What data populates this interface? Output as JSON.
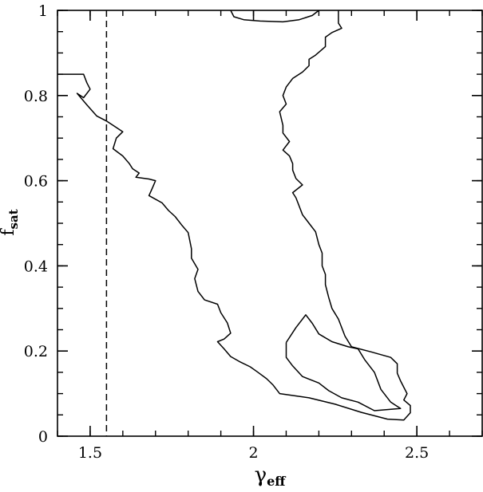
{
  "chart_data": {
    "type": "line",
    "title": "",
    "xlabel": {
      "main": "γ",
      "sub": "eff"
    },
    "ylabel": {
      "main": "f",
      "sub": "sat"
    },
    "xlim": [
      1.4,
      2.7
    ],
    "ylim": [
      0,
      1
    ],
    "x_ticks": [
      {
        "value": 1.5,
        "label": "1.5"
      },
      {
        "value": 2.0,
        "label": "2"
      },
      {
        "value": 2.5,
        "label": "2.5"
      }
    ],
    "y_ticks": [
      {
        "value": 0.0,
        "label": "0"
      },
      {
        "value": 0.2,
        "label": "0.2"
      },
      {
        "value": 0.4,
        "label": "0.4"
      },
      {
        "value": 0.6,
        "label": "0.6"
      },
      {
        "value": 0.8,
        "label": "0.8"
      },
      {
        "value": 1.0,
        "label": "1"
      }
    ],
    "x_minor_step": 0.1,
    "y_minor_step": 0.05,
    "grid": false,
    "reference_lines": [
      {
        "orientation": "vertical",
        "x": 1.55,
        "style": "dashed"
      }
    ],
    "series": [
      {
        "style": "solid",
        "points": [
          [
            1.4,
            0.85
          ],
          [
            1.48,
            0.85
          ],
          [
            1.49,
            0.83
          ],
          [
            1.5,
            0.815
          ],
          [
            1.48,
            0.795
          ],
          [
            1.46,
            0.805
          ],
          [
            1.49,
            0.778
          ],
          [
            1.52,
            0.752
          ],
          [
            1.55,
            0.74
          ],
          [
            1.58,
            0.725
          ],
          [
            1.6,
            0.715
          ],
          [
            1.58,
            0.7
          ],
          [
            1.57,
            0.675
          ],
          [
            1.6,
            0.658
          ],
          [
            1.62,
            0.64
          ],
          [
            1.63,
            0.628
          ],
          [
            1.65,
            0.618
          ],
          [
            1.64,
            0.608
          ],
          [
            1.68,
            0.604
          ],
          [
            1.7,
            0.6
          ],
          [
            1.69,
            0.582
          ],
          [
            1.68,
            0.565
          ],
          [
            1.72,
            0.548
          ],
          [
            1.74,
            0.53
          ],
          [
            1.76,
            0.516
          ],
          [
            1.78,
            0.496
          ],
          [
            1.8,
            0.478
          ],
          [
            1.81,
            0.44
          ],
          [
            1.81,
            0.418
          ],
          [
            1.83,
            0.392
          ],
          [
            1.82,
            0.37
          ],
          [
            1.83,
            0.34
          ],
          [
            1.85,
            0.32
          ],
          [
            1.89,
            0.31
          ],
          [
            1.9,
            0.29
          ],
          [
            1.92,
            0.266
          ],
          [
            1.93,
            0.242
          ],
          [
            1.91,
            0.228
          ],
          [
            1.89,
            0.222
          ],
          [
            1.91,
            0.205
          ],
          [
            1.93,
            0.187
          ],
          [
            1.96,
            0.174
          ],
          [
            1.99,
            0.163
          ],
          [
            2.01,
            0.152
          ],
          [
            2.04,
            0.135
          ],
          [
            2.06,
            0.12
          ],
          [
            2.08,
            0.1
          ],
          [
            2.17,
            0.09
          ],
          [
            2.25,
            0.075
          ],
          [
            2.33,
            0.056
          ],
          [
            2.41,
            0.04
          ],
          [
            2.46,
            0.038
          ],
          [
            2.48,
            0.055
          ],
          [
            2.48,
            0.072
          ],
          [
            2.46,
            0.085
          ],
          [
            2.47,
            0.1
          ],
          [
            2.46,
            0.115
          ],
          [
            2.45,
            0.13
          ],
          [
            2.44,
            0.148
          ],
          [
            2.44,
            0.17
          ],
          [
            2.42,
            0.185
          ],
          [
            2.36,
            0.198
          ],
          [
            2.3,
            0.21
          ],
          [
            2.28,
            0.235
          ],
          [
            2.26,
            0.275
          ],
          [
            2.24,
            0.3
          ],
          [
            2.23,
            0.326
          ],
          [
            2.22,
            0.356
          ],
          [
            2.22,
            0.38
          ],
          [
            2.21,
            0.4
          ],
          [
            2.21,
            0.43
          ],
          [
            2.2,
            0.45
          ],
          [
            2.19,
            0.48
          ],
          [
            2.17,
            0.5
          ],
          [
            2.15,
            0.52
          ],
          [
            2.14,
            0.54
          ],
          [
            2.13,
            0.56
          ],
          [
            2.12,
            0.572
          ],
          [
            2.15,
            0.59
          ],
          [
            2.13,
            0.605
          ],
          [
            2.12,
            0.625
          ],
          [
            2.12,
            0.64
          ],
          [
            2.11,
            0.658
          ],
          [
            2.09,
            0.672
          ],
          [
            2.11,
            0.692
          ],
          [
            2.09,
            0.712
          ],
          [
            2.09,
            0.73
          ],
          [
            2.08,
            0.762
          ],
          [
            2.1,
            0.78
          ],
          [
            2.09,
            0.8
          ],
          [
            2.1,
            0.82
          ],
          [
            2.12,
            0.84
          ],
          [
            2.15,
            0.855
          ],
          [
            2.17,
            0.87
          ],
          [
            2.17,
            0.885
          ],
          [
            2.19,
            0.895
          ],
          [
            2.22,
            0.915
          ],
          [
            2.22,
            0.937
          ],
          [
            2.24,
            0.948
          ],
          [
            2.27,
            0.958
          ],
          [
            2.26,
            0.97
          ],
          [
            2.26,
            0.985
          ],
          [
            2.26,
            1.0
          ]
        ]
      },
      {
        "style": "solid",
        "points": [
          [
            1.93,
            1.0
          ],
          [
            1.94,
            0.985
          ],
          [
            1.97,
            0.978
          ],
          [
            2.02,
            0.975
          ],
          [
            2.09,
            0.973
          ],
          [
            2.14,
            0.978
          ],
          [
            2.18,
            0.988
          ],
          [
            2.2,
            1.0
          ]
        ]
      },
      {
        "style": "solid",
        "points": [
          [
            2.1,
            0.22
          ],
          [
            2.13,
            0.255
          ],
          [
            2.16,
            0.285
          ],
          [
            2.18,
            0.265
          ],
          [
            2.2,
            0.24
          ],
          [
            2.24,
            0.222
          ],
          [
            2.29,
            0.21
          ],
          [
            2.32,
            0.205
          ],
          [
            2.34,
            0.18
          ],
          [
            2.37,
            0.15
          ],
          [
            2.39,
            0.11
          ],
          [
            2.42,
            0.08
          ],
          [
            2.45,
            0.065
          ],
          [
            2.37,
            0.06
          ],
          [
            2.32,
            0.08
          ],
          [
            2.27,
            0.09
          ],
          [
            2.23,
            0.107
          ],
          [
            2.2,
            0.125
          ],
          [
            2.15,
            0.14
          ],
          [
            2.12,
            0.165
          ],
          [
            2.1,
            0.185
          ],
          [
            2.1,
            0.22
          ]
        ]
      }
    ]
  }
}
